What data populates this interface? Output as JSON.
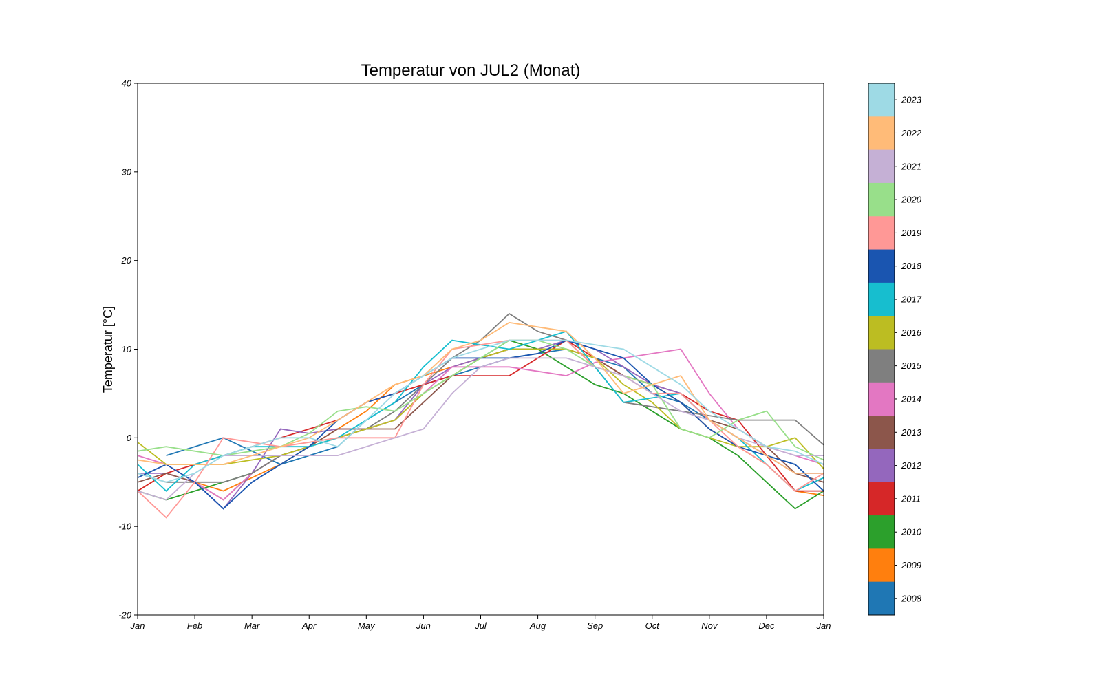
{
  "chart_data": {
    "type": "line",
    "title": "Temperatur von JUL2 (Monat)",
    "xlabel": "",
    "ylabel": "Temperatur [°C]",
    "ylim": [
      -20,
      40
    ],
    "yticks": [
      "40",
      "30",
      "20",
      "10",
      "0",
      "-10",
      "-20"
    ],
    "ytick_values": [
      40,
      30,
      20,
      10,
      0,
      -10,
      -20
    ],
    "xticks": [
      "Jan",
      "Feb",
      "Mar",
      "Apr",
      "May",
      "Jun",
      "Jul",
      "Aug",
      "Sep",
      "Oct",
      "Nov",
      "Dec",
      "Jan"
    ],
    "x_months": [
      1,
      1.5,
      2,
      2.5,
      3,
      3.5,
      4,
      4.5,
      5,
      5.5,
      6,
      6.5,
      7,
      7.5,
      8,
      8.5,
      9,
      9.5,
      10,
      10.5,
      11,
      11.5,
      12,
      12.5,
      13
    ],
    "grid": false,
    "legend": "colorbar right",
    "series": [
      {
        "name": "2008",
        "color": "#1f77b4",
        "values": [
          null,
          -2,
          -1,
          0,
          -1.5,
          -3,
          -2,
          -1,
          2,
          4,
          6,
          7,
          8,
          9,
          9.5,
          10,
          9,
          8,
          5,
          4,
          2,
          0,
          -2,
          -3,
          -6
        ]
      },
      {
        "name": "2009",
        "color": "#ff7f0e",
        "values": [
          -6,
          -4,
          -5,
          -6,
          -4.5,
          -3,
          -1,
          1,
          3,
          6,
          7,
          8,
          9,
          10,
          10,
          10,
          9,
          7,
          6,
          4,
          1,
          -1,
          -3,
          -6,
          -6.5
        ]
      },
      {
        "name": "2010",
        "color": "#2ca02c",
        "values": [
          -6,
          -7,
          -6,
          -5,
          -4,
          -2,
          -1,
          0,
          1,
          2,
          5,
          7,
          9,
          11,
          10,
          8,
          6,
          5,
          3,
          1,
          0,
          -2,
          -5,
          -8,
          -6
        ]
      },
      {
        "name": "2011",
        "color": "#d62728",
        "values": [
          -6,
          -4,
          -3,
          -2,
          -1,
          0,
          1,
          2,
          4,
          5,
          6,
          7,
          7,
          7,
          9,
          11,
          9,
          7,
          6,
          5,
          3,
          2,
          -2,
          -6,
          -6
        ]
      },
      {
        "name": "2012",
        "color": "#9467bd",
        "values": [
          -4,
          -4,
          -5,
          -8,
          -4,
          1,
          0.5,
          1,
          1,
          2,
          6,
          8,
          9,
          10,
          10,
          11,
          10,
          8,
          6,
          5,
          2,
          0,
          -2,
          -4,
          -4
        ]
      },
      {
        "name": "2013",
        "color": "#8c564b",
        "values": [
          -5,
          -4,
          -5,
          -7,
          -4,
          -2,
          -1,
          1,
          1,
          1,
          4,
          7,
          9,
          10,
          10,
          10,
          9,
          7,
          5,
          5,
          2,
          1,
          -1,
          -4,
          -5
        ]
      },
      {
        "name": "2014",
        "color": "#e377c2",
        "values": [
          -2,
          -3,
          -5,
          -7,
          -4,
          -2,
          -1,
          0,
          1,
          2,
          5,
          8,
          8,
          8,
          7.5,
          7,
          8.5,
          9,
          9.5,
          10,
          5,
          1,
          -1,
          -2,
          -3
        ]
      },
      {
        "name": "2015",
        "color": "#7f7f7f",
        "values": [
          -4,
          -5,
          -5,
          -5,
          -4,
          -2,
          -1,
          0,
          1,
          3,
          6,
          9,
          11,
          14,
          12,
          11,
          8,
          4,
          3.5,
          3,
          2.5,
          2,
          2,
          2,
          -0.8
        ]
      },
      {
        "name": "2016",
        "color": "#bcbd22",
        "values": [
          -0.5,
          -3,
          -3,
          -3,
          -2.5,
          -2,
          -1,
          0,
          1,
          2,
          5,
          7,
          9,
          10,
          10,
          10,
          9,
          6,
          4,
          1,
          0,
          -1,
          -1,
          0,
          -3.5
        ]
      },
      {
        "name": "2017",
        "color": "#17becf",
        "values": [
          -3,
          -6,
          -3,
          -2,
          -1,
          -1,
          -1,
          0,
          2,
          4,
          8,
          11,
          10.5,
          10,
          11,
          12,
          8,
          4,
          4.5,
          5,
          2,
          0,
          -3,
          -6,
          -4.5
        ]
      },
      {
        "name": "2018",
        "color": "#1a55b0",
        "values": [
          -4.5,
          -3,
          -5,
          -8,
          -5,
          -3,
          -1,
          2,
          4,
          5,
          7,
          9,
          9,
          9,
          9.5,
          11,
          10,
          9,
          6,
          4,
          1,
          -1,
          -2,
          -3,
          -6
        ]
      },
      {
        "name": "2019",
        "color": "#ff9896",
        "values": [
          -6,
          -9,
          -5,
          0,
          -0.5,
          -1,
          -0.5,
          0,
          0,
          0,
          6,
          10,
          10.5,
          11,
          11,
          11,
          8,
          7,
          5,
          5,
          2,
          -1,
          -3,
          -6,
          -4
        ]
      },
      {
        "name": "2020",
        "color": "#98df8a",
        "values": [
          -1.5,
          -1,
          -1.5,
          -2,
          -1.5,
          -1,
          0.5,
          3,
          3.5,
          3,
          5,
          7,
          9,
          11,
          11,
          10,
          8,
          7,
          6,
          1,
          0,
          2,
          3,
          -1,
          -2.5
        ]
      },
      {
        "name": "2021",
        "color": "#c5b0d5",
        "values": [
          -6,
          -7,
          -4,
          -2,
          -2,
          -2,
          -2,
          -2,
          -1,
          0,
          1,
          5,
          8,
          9,
          9,
          9,
          8,
          7,
          5,
          3,
          2,
          0,
          -1,
          -2,
          -2
        ]
      },
      {
        "name": "2022",
        "color": "#ffbb78",
        "values": [
          -2.5,
          -3,
          -3,
          -3,
          -2,
          -1,
          0,
          2,
          4,
          6,
          7,
          10,
          11,
          13,
          12.5,
          12,
          9,
          5,
          6,
          7,
          2,
          0,
          -2,
          -4,
          -4
        ]
      },
      {
        "name": "2023",
        "color": "#9edae5",
        "values": [
          -4,
          -5,
          -4,
          -2,
          -1,
          0,
          0,
          -1,
          2,
          5,
          7,
          9,
          10,
          11,
          11,
          11,
          10.5,
          10,
          8,
          6,
          3,
          1,
          -1,
          -1.5,
          -3
        ]
      }
    ],
    "colorbar": {
      "labels": [
        "2023",
        "2022",
        "2021",
        "2020",
        "2019",
        "2018",
        "2017",
        "2016",
        "2015",
        "2014",
        "2013",
        "2012",
        "2011",
        "2010",
        "2009",
        "2008"
      ]
    }
  }
}
